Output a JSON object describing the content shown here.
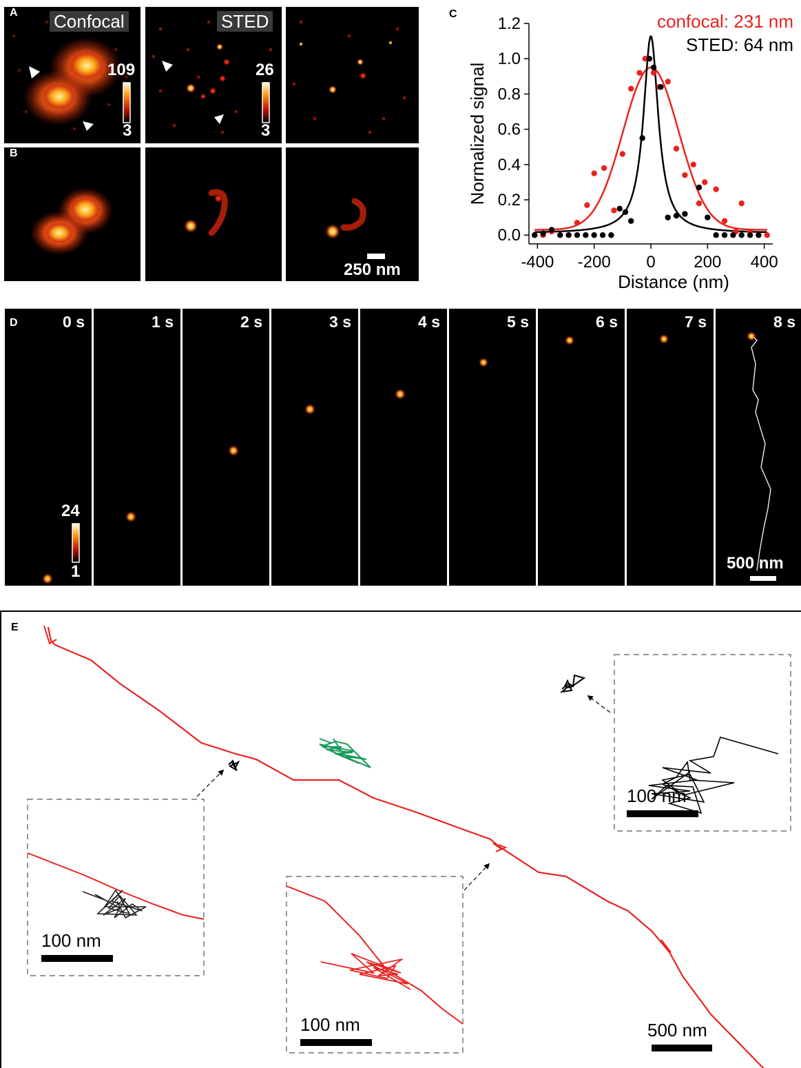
{
  "panel_letters": {
    "a": "A",
    "b": "B",
    "c": "C",
    "d": "D",
    "e": "E"
  },
  "panel_a": {
    "confocal_label": "Confocal",
    "sted_label": "STED",
    "colorbar_confocal": {
      "max": "109",
      "min": "3"
    },
    "colorbar_sted": {
      "max": "26",
      "min": "3"
    }
  },
  "panel_b": {
    "scalebar_label": "250 nm"
  },
  "panel_d": {
    "frames": [
      "0 s",
      "1 s",
      "2 s",
      "3 s",
      "4 s",
      "5 s",
      "6 s",
      "7 s",
      "8 s"
    ],
    "colorbar": {
      "max": "24",
      "min": "1"
    },
    "scalebar_label": "500 nm"
  },
  "panel_e": {
    "inset_scale_label": "100 nm",
    "main_scale_label": "500 nm"
  },
  "colors": {
    "confocal": "#e8231f",
    "sted": "#000000",
    "green_track": "#1a9a5a",
    "track_red": "#e8231f"
  },
  "chart_data": {
    "type": "scatter",
    "title": "",
    "xlabel": "Distance (nm)",
    "ylabel": "Normalized signal",
    "xlim": [
      -430,
      430
    ],
    "ylim": [
      -0.05,
      1.2
    ],
    "xticks": [
      "-400",
      "-200",
      "0",
      "200",
      "400"
    ],
    "yticks": [
      "0.0",
      "0.2",
      "0.4",
      "0.6",
      "0.8",
      "1.0",
      "1.2"
    ],
    "series": [
      {
        "name": "confocal: 231 nm",
        "color": "#e8231f",
        "points": [
          [
            -410,
            0
          ],
          [
            -380,
            0
          ],
          [
            -350,
            0.02
          ],
          [
            -320,
            0
          ],
          [
            -290,
            0
          ],
          [
            -260,
            0.07
          ],
          [
            -225,
            0.17
          ],
          [
            -200,
            0.35
          ],
          [
            -165,
            0.38
          ],
          [
            -130,
            0.14
          ],
          [
            -100,
            0.46
          ],
          [
            -70,
            0.83
          ],
          [
            -40,
            0.92
          ],
          [
            -20,
            1.0
          ],
          [
            10,
            0.92
          ],
          [
            30,
            0.84
          ],
          [
            60,
            0.87
          ],
          [
            90,
            0.49
          ],
          [
            120,
            0.34
          ],
          [
            150,
            0.4
          ],
          [
            170,
            0.18
          ],
          [
            190,
            0.3
          ],
          [
            230,
            0.26
          ],
          [
            260,
            0.08
          ],
          [
            300,
            0.02
          ],
          [
            320,
            0.18
          ],
          [
            350,
            0.02
          ],
          [
            380,
            0
          ],
          [
            410,
            0
          ]
        ],
        "fit": {
          "amplitude": 0.92,
          "fwhm_nm": 231,
          "offset": 0.03
        }
      },
      {
        "name": "STED: 64 nm",
        "color": "#000000",
        "points": [
          [
            -410,
            0
          ],
          [
            -380,
            0.01
          ],
          [
            -350,
            0.03
          ],
          [
            -320,
            0
          ],
          [
            -290,
            0
          ],
          [
            -260,
            0
          ],
          [
            -230,
            0
          ],
          [
            -200,
            0
          ],
          [
            -170,
            0
          ],
          [
            -140,
            0
          ],
          [
            -110,
            0.15
          ],
          [
            -90,
            0.13
          ],
          [
            -70,
            0.08
          ],
          [
            -30,
            0.55
          ],
          [
            -5,
            1.0
          ],
          [
            10,
            0.95
          ],
          [
            35,
            0.84
          ],
          [
            60,
            0.1
          ],
          [
            90,
            0.11
          ],
          [
            120,
            0.12
          ],
          [
            170,
            0.27
          ],
          [
            200,
            0.1
          ],
          [
            230,
            0
          ],
          [
            260,
            0
          ],
          [
            290,
            0
          ],
          [
            320,
            0
          ],
          [
            350,
            0
          ],
          [
            380,
            0
          ]
        ],
        "fit": {
          "amplitude": 1.12,
          "fwhm_nm": 64,
          "offset": 0.01
        }
      }
    ]
  }
}
